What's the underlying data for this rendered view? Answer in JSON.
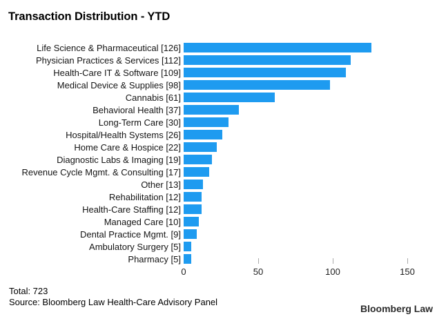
{
  "title": "Transaction Distribution - YTD",
  "chart_data": {
    "type": "bar",
    "orientation": "horizontal",
    "title": "Transaction Distribution - YTD",
    "categories": [
      "Life Science & Pharmaceutical",
      "Physician Practices & Services",
      "Health-Care IT & Software",
      "Medical Device & Supplies",
      "Cannabis",
      "Behavioral Health",
      "Long-Term Care",
      "Hospital/Health Systems",
      "Home Care & Hospice",
      "Diagnostic Labs & Imaging",
      "Revenue Cycle Mgmt. & Consulting",
      "Other",
      "Rehabilitation",
      "Health-Care Staffing",
      "Managed Care",
      "Dental Practice Mgmt.",
      "Ambulatory Surgery",
      "Pharmacy"
    ],
    "values": [
      126,
      112,
      109,
      98,
      61,
      37,
      30,
      26,
      22,
      19,
      17,
      13,
      12,
      12,
      10,
      9,
      5,
      5
    ],
    "labels": [
      "Life Science & Pharmaceutical [126]",
      "Physician Practices & Services [112]",
      "Health-Care IT & Software [109]",
      "Medical Device & Supplies [98]",
      "Cannabis [61]",
      "Behavioral Health [37]",
      "Long-Term Care [30]",
      "Hospital/Health Systems [26]",
      "Home Care & Hospice [22]",
      "Diagnostic Labs & Imaging [19]",
      "Revenue Cycle Mgmt. & Consulting [17]",
      "Other [13]",
      "Rehabilitation [12]",
      "Health-Care Staffing [12]",
      "Managed Care [10]",
      "Dental Practice Mgmt. [9]",
      "Ambulatory Surgery [5]",
      "Pharmacy [5]"
    ],
    "xlabel": "",
    "ylabel": "",
    "xlim": [
      0,
      150
    ],
    "x_ticks": [
      0,
      50,
      100,
      150
    ],
    "x_tick_labels": [
      "0",
      "50",
      "100",
      "150"
    ],
    "grid": "off",
    "legend": "none",
    "bar_color": "#1E9BF0"
  },
  "footer": {
    "total_label": "Total: 723",
    "source_label": "Source: Bloomberg Law Health-Care Advisory Panel"
  },
  "branding": {
    "logo_text": "Bloomberg Law"
  },
  "colors": {
    "bar": "#1E9BF0",
    "title_text": "#000000",
    "label_text": "#141414",
    "tick_mark": "#A9A9A9",
    "logo_text": "#2B2B2B"
  }
}
